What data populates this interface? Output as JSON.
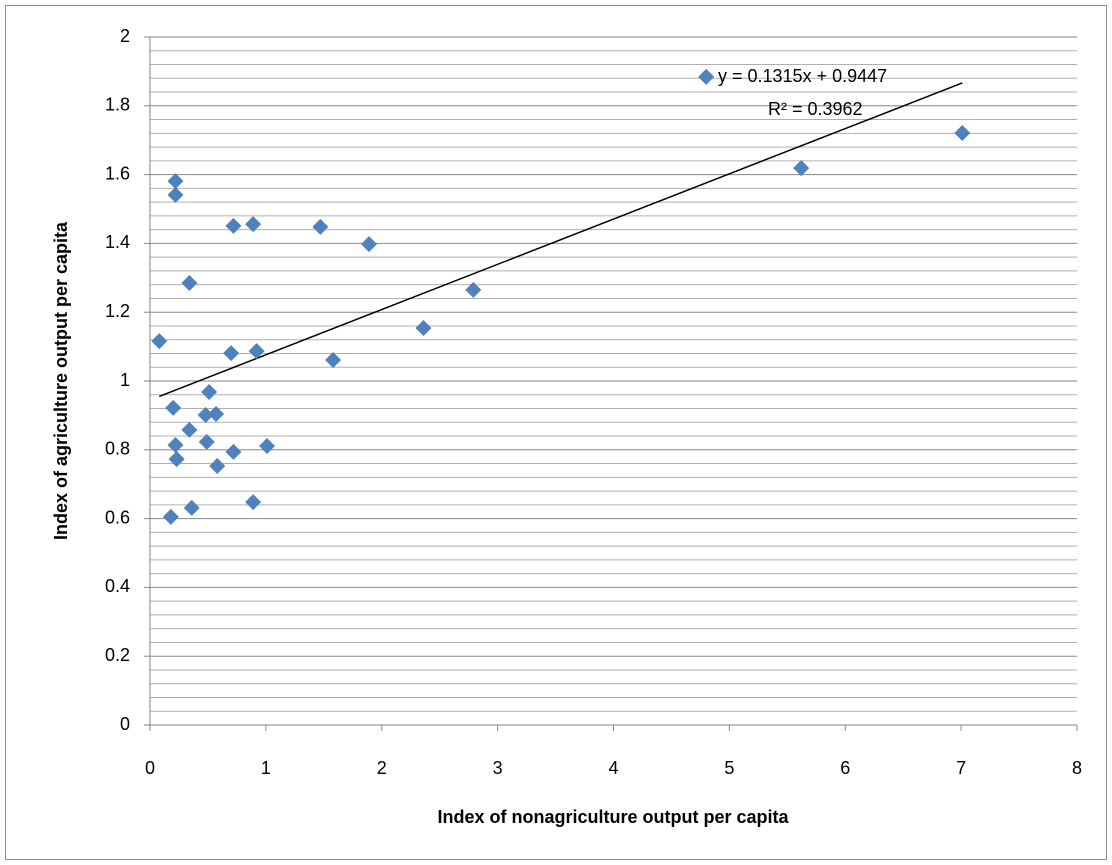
{
  "chart_data": {
    "type": "scatter",
    "x_label": "Index of nonagriculture output per capita",
    "y_label": "Index of agriculture output per capita",
    "xlim": [
      0,
      8
    ],
    "xticks": [
      0,
      1,
      2,
      3,
      4,
      5,
      6,
      7,
      8
    ],
    "ylim": [
      0,
      2
    ],
    "yticks": [
      0,
      0.2,
      0.4,
      0.6,
      0.8,
      1,
      1.2,
      1.4,
      1.6,
      1.8,
      2
    ],
    "grid": true,
    "minor_grid_divisions": 5,
    "series": [
      {
        "color": "#4f81bd",
        "x": [
          0.08,
          0.22,
          0.22,
          0.34,
          0.72,
          0.89,
          1.47,
          1.89,
          2.36,
          2.79,
          1.58,
          0.92,
          0.7,
          0.51,
          0.2,
          0.48,
          0.57,
          0.34,
          0.22,
          0.49,
          1.01,
          0.72,
          0.23,
          0.58,
          0.89,
          0.36,
          0.18,
          4.8,
          5.62,
          7.01
        ],
        "values": [
          1.116,
          1.581,
          1.541,
          1.285,
          1.451,
          1.456,
          1.448,
          1.398,
          1.154,
          1.265,
          1.061,
          1.087,
          1.081,
          0.968,
          0.922,
          0.901,
          0.904,
          0.858,
          0.814,
          0.823,
          0.811,
          0.794,
          0.773,
          0.753,
          0.648,
          0.631,
          0.605,
          1.884,
          1.619,
          1.721
        ]
      }
    ],
    "trendline": {
      "slope": 0.1315,
      "intercept": 0.9447,
      "r2": 0.3962,
      "color": "#000000",
      "label": "y = 0.1315x + 0.9447",
      "r2_label": "R² = 0.3962"
    }
  }
}
